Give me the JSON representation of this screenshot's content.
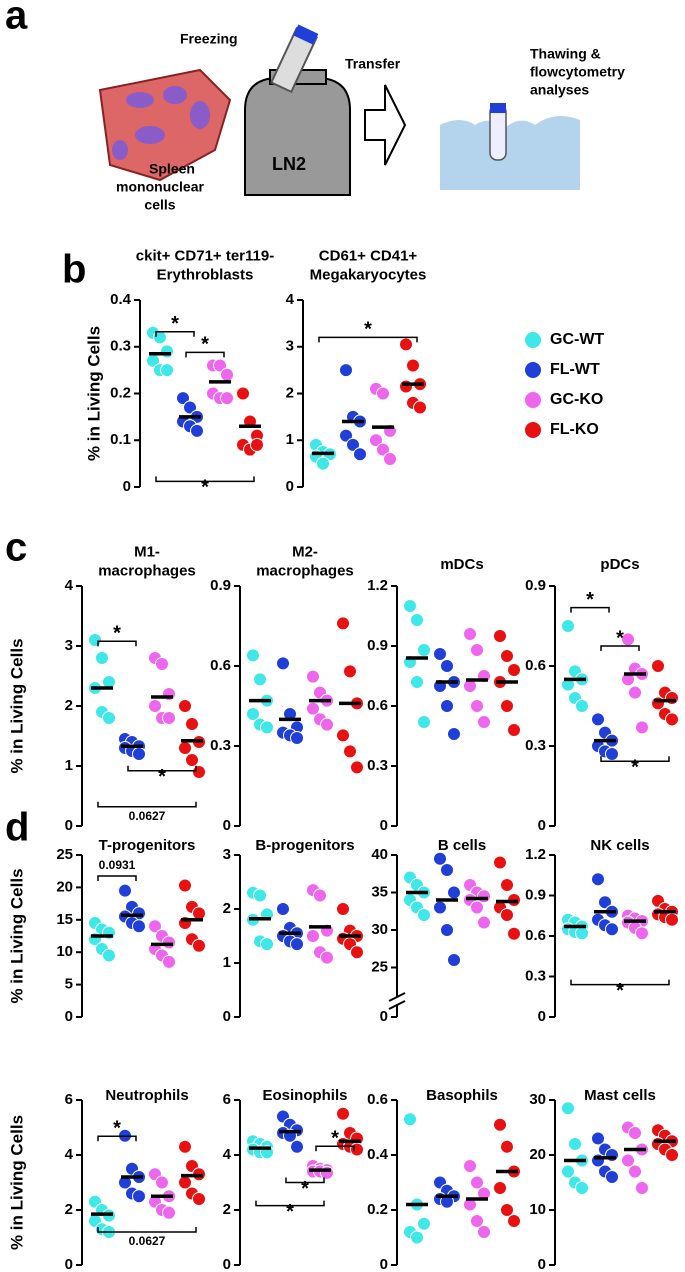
{
  "panel_labels": [
    "a",
    "b",
    "c",
    "d"
  ],
  "schematic": {
    "freezing": "Freezing",
    "ln2": "LN2",
    "transfer": "Transfer",
    "spleen": [
      "Spleen",
      "mononuclear",
      "cells"
    ],
    "thawing": [
      "Thawing &",
      "flowcytometry",
      "analyses"
    ]
  },
  "legend": [
    {
      "name": "GC-WT",
      "color": "#3ee8e8"
    },
    {
      "name": "FL-WT",
      "color": "#1f3fd8"
    },
    {
      "name": "GC-KO",
      "color": "#ee66ee"
    },
    {
      "name": "FL-KO",
      "color": "#e81010"
    }
  ],
  "chart_data": [
    {
      "type": "dot",
      "title": [
        "ckit+ CD71+ ter119-",
        "Erythroblasts"
      ],
      "ylabel": "% in Living Cells",
      "ylim": [
        0,
        0.4
      ],
      "yticks": [
        0,
        0.1,
        0.2,
        0.3,
        0.4
      ],
      "groups": [
        {
          "values": [
            0.33,
            0.32,
            0.29,
            0.27,
            0.25,
            0.25
          ],
          "mean": 0.285
        },
        {
          "values": [
            0.19,
            0.17,
            0.15,
            0.14,
            0.13,
            0.12
          ],
          "mean": 0.15
        },
        {
          "values": [
            0.26,
            0.26,
            0.24,
            0.2,
            0.19,
            0.19
          ],
          "mean": 0.225
        },
        {
          "values": [
            0.2,
            0.14,
            0.11,
            0.09,
            0.08,
            0.09
          ],
          "mean": 0.13
        }
      ],
      "annotations": [
        {
          "text": "*",
          "between": [
            0,
            1
          ]
        },
        {
          "text": "*",
          "between": [
            1,
            2
          ]
        },
        {
          "text": "*",
          "between": [
            0,
            3
          ]
        }
      ]
    },
    {
      "type": "dot",
      "title": [
        "CD61+ CD41+",
        "Megakaryocytes"
      ],
      "ylim": [
        0,
        4
      ],
      "yticks": [
        0,
        1,
        2,
        3,
        4
      ],
      "groups": [
        {
          "values": [
            0.9,
            0.75,
            0.7,
            0.65,
            0.5
          ],
          "mean": 0.72
        },
        {
          "values": [
            2.5,
            1.5,
            1.4,
            1.1,
            0.9,
            0.7
          ],
          "mean": 1.4
        },
        {
          "values": [
            2.1,
            2.0,
            1.2,
            1.0,
            0.8,
            0.6
          ],
          "mean": 1.28
        },
        {
          "values": [
            3.05,
            2.6,
            2.2,
            2.15,
            1.8,
            1.7
          ],
          "mean": 2.2
        }
      ],
      "annotations": [
        {
          "text": "*",
          "between": [
            0,
            3
          ]
        }
      ]
    },
    {
      "type": "dot",
      "title": [
        "M1-",
        "macrophages"
      ],
      "ylabel": "% in Living Cells",
      "ylim": [
        0,
        4
      ],
      "yticks": [
        0,
        1,
        2,
        3,
        4
      ],
      "groups": [
        {
          "values": [
            3.1,
            2.8,
            2.4,
            2.3,
            1.9,
            1.8
          ],
          "mean": 2.3
        },
        {
          "values": [
            1.45,
            1.4,
            1.33,
            1.3,
            1.25,
            1.2
          ],
          "mean": 1.33
        },
        {
          "values": [
            2.8,
            2.7,
            2.2,
            2.0,
            1.8,
            1.8
          ],
          "mean": 2.15
        },
        {
          "values": [
            2.0,
            1.7,
            1.4,
            1.3,
            1.1,
            0.9
          ],
          "mean": 1.42
        }
      ],
      "annotations": [
        {
          "text": "*",
          "between": [
            0,
            1
          ]
        },
        {
          "text": "*",
          "between": [
            1,
            3
          ]
        },
        {
          "text": "0.0627",
          "between": [
            0,
            3
          ]
        }
      ]
    },
    {
      "type": "dot",
      "title": [
        "M2-",
        "macrophages"
      ],
      "ylim": [
        0,
        0.9
      ],
      "yticks": [
        0,
        0.3,
        0.6,
        0.9
      ],
      "groups": [
        {
          "values": [
            0.64,
            0.55,
            0.47,
            0.42,
            0.38,
            0.37
          ],
          "mean": 0.47
        },
        {
          "values": [
            0.61,
            0.42,
            0.37,
            0.35,
            0.34,
            0.33
          ],
          "mean": 0.4
        },
        {
          "values": [
            0.56,
            0.5,
            0.47,
            0.44,
            0.4,
            0.38
          ],
          "mean": 0.47
        },
        {
          "values": [
            0.76,
            0.58,
            0.46,
            0.34,
            0.28,
            0.22
          ],
          "mean": 0.46
        }
      ],
      "annotations": []
    },
    {
      "type": "dot",
      "title": [
        "mDCs"
      ],
      "ylim": [
        0,
        1.2
      ],
      "yticks": [
        0,
        0.3,
        0.6,
        0.9,
        1.2
      ],
      "groups": [
        {
          "values": [
            1.1,
            1.03,
            0.88,
            0.82,
            0.72,
            0.52
          ],
          "mean": 0.84
        },
        {
          "values": [
            0.86,
            0.8,
            0.72,
            0.7,
            0.6,
            0.46
          ],
          "mean": 0.72
        },
        {
          "values": [
            0.96,
            0.88,
            0.75,
            0.7,
            0.6,
            0.52
          ],
          "mean": 0.73
        },
        {
          "values": [
            0.95,
            0.85,
            0.78,
            0.72,
            0.6,
            0.48
          ],
          "mean": 0.72
        }
      ],
      "annotations": []
    },
    {
      "type": "dot",
      "title": [
        "pDCs"
      ],
      "ylim": [
        0,
        0.9
      ],
      "yticks": [
        0,
        0.3,
        0.6,
        0.9
      ],
      "groups": [
        {
          "values": [
            0.75,
            0.58,
            0.55,
            0.53,
            0.48,
            0.45
          ],
          "mean": 0.55
        },
        {
          "values": [
            0.4,
            0.35,
            0.32,
            0.3,
            0.28,
            0.27
          ],
          "mean": 0.32
        },
        {
          "values": [
            0.7,
            0.59,
            0.57,
            0.55,
            0.5,
            0.37
          ],
          "mean": 0.57
        },
        {
          "values": [
            0.6,
            0.5,
            0.48,
            0.46,
            0.42,
            0.4
          ],
          "mean": 0.47
        }
      ],
      "annotations": [
        {
          "text": "*",
          "between": [
            0,
            1
          ]
        },
        {
          "text": "*",
          "between": [
            1,
            2
          ]
        },
        {
          "text": "*",
          "between": [
            1,
            3
          ]
        }
      ]
    },
    {
      "type": "dot",
      "title": [
        "T-progenitors"
      ],
      "ylabel": "% in Living Cells",
      "ylim": [
        0,
        25
      ],
      "yticks": [
        0,
        5,
        10,
        15,
        20,
        25
      ],
      "groups": [
        {
          "values": [
            14.5,
            13.5,
            13,
            12,
            10.5,
            9.5
          ],
          "mean": 12.5
        },
        {
          "values": [
            19.5,
            17,
            16,
            15.5,
            14.5,
            14
          ],
          "mean": 15.7
        },
        {
          "values": [
            14,
            12.5,
            11.5,
            10.5,
            9.5,
            8.5
          ],
          "mean": 11.2
        },
        {
          "values": [
            20.3,
            17,
            16,
            14.5,
            12,
            11
          ],
          "mean": 15
        }
      ],
      "annotations": [
        {
          "text": "0.0931",
          "between": [
            0,
            1
          ]
        }
      ]
    },
    {
      "type": "dot",
      "title": [
        "B-progenitors"
      ],
      "ylim": [
        0,
        3
      ],
      "yticks": [
        0,
        1,
        2,
        3
      ],
      "groups": [
        {
          "values": [
            2.3,
            2.25,
            1.9,
            1.8,
            1.4,
            1.35
          ],
          "mean": 1.82
        },
        {
          "values": [
            2.0,
            1.65,
            1.55,
            1.5,
            1.4,
            1.35
          ],
          "mean": 1.55
        },
        {
          "values": [
            2.35,
            2.25,
            1.6,
            1.5,
            1.2,
            1.1
          ],
          "mean": 1.67
        },
        {
          "values": [
            2.0,
            1.6,
            1.5,
            1.45,
            1.35,
            1.2
          ],
          "mean": 1.5
        }
      ],
      "annotations": []
    },
    {
      "type": "dot",
      "title": [
        "B cells"
      ],
      "ylim": [
        22,
        40
      ],
      "yticks": [
        25,
        30,
        35,
        40
      ],
      "break_tick": 0,
      "groups": [
        {
          "values": [
            37,
            36,
            35,
            34,
            33,
            32
          ],
          "mean": 35
        },
        {
          "values": [
            39.5,
            38,
            35,
            33,
            30,
            26
          ],
          "mean": 34
        },
        {
          "values": [
            36,
            35,
            34.5,
            34,
            33,
            31
          ],
          "mean": 34.2
        },
        {
          "values": [
            39,
            36,
            34,
            33,
            32,
            29.5
          ],
          "mean": 33.8
        }
      ],
      "annotations": []
    },
    {
      "type": "dot",
      "title": [
        "NK cells"
      ],
      "ylim": [
        0,
        1.2
      ],
      "yticks": [
        0,
        0.3,
        0.6,
        0.9,
        1.2
      ],
      "groups": [
        {
          "values": [
            0.72,
            0.7,
            0.67,
            0.65,
            0.63,
            0.62
          ],
          "mean": 0.67
        },
        {
          "values": [
            1.02,
            0.85,
            0.78,
            0.72,
            0.68,
            0.65
          ],
          "mean": 0.78
        },
        {
          "values": [
            0.75,
            0.73,
            0.71,
            0.7,
            0.66,
            0.62
          ],
          "mean": 0.71
        },
        {
          "values": [
            0.86,
            0.8,
            0.78,
            0.76,
            0.74,
            0.72
          ],
          "mean": 0.78
        }
      ],
      "annotations": [
        {
          "text": "*",
          "between": [
            0,
            3
          ]
        }
      ]
    },
    {
      "type": "dot",
      "title": [
        "Neutrophils"
      ],
      "ylabel": "% in Living Cells",
      "ylim": [
        0,
        6
      ],
      "yticks": [
        0,
        2,
        4,
        6
      ],
      "groups": [
        {
          "values": [
            2.3,
            2.0,
            1.8,
            1.6,
            1.3,
            1.2
          ],
          "mean": 1.85
        },
        {
          "values": [
            4.7,
            3.5,
            3.2,
            3.0,
            2.6,
            2.5
          ],
          "mean": 3.2
        },
        {
          "values": [
            3.3,
            3.0,
            2.5,
            2.3,
            2.0,
            1.9
          ],
          "mean": 2.5
        },
        {
          "values": [
            4.3,
            3.6,
            3.3,
            3.0,
            2.6,
            2.4
          ],
          "mean": 3.25
        }
      ],
      "annotations": [
        {
          "text": "*",
          "between": [
            0,
            1
          ]
        },
        {
          "text": "0.0627",
          "between": [
            0,
            3
          ]
        }
      ]
    },
    {
      "type": "dot",
      "title": [
        "Eosinophils"
      ],
      "ylim": [
        0,
        6
      ],
      "yticks": [
        0,
        2,
        4,
        6
      ],
      "groups": [
        {
          "values": [
            4.5,
            4.4,
            4.3,
            4.2,
            4.1,
            4.1
          ],
          "mean": 4.25
        },
        {
          "values": [
            5.4,
            5.1,
            4.9,
            4.8,
            4.7,
            4.3
          ],
          "mean": 4.85
        },
        {
          "values": [
            3.6,
            3.5,
            3.45,
            3.4,
            3.4,
            3.35
          ],
          "mean": 3.45
        },
        {
          "values": [
            5.5,
            4.8,
            4.6,
            4.4,
            4.3,
            4.2
          ],
          "mean": 4.5
        }
      ],
      "annotations": [
        {
          "text": "*",
          "between": [
            2,
            3
          ]
        },
        {
          "text": "*",
          "between": [
            1,
            2
          ]
        },
        {
          "text": "*",
          "between": [
            0,
            2
          ]
        }
      ]
    },
    {
      "type": "dot",
      "title": [
        "Basophils"
      ],
      "ylim": [
        0,
        0.6
      ],
      "yticks": [
        0,
        0.2,
        0.4,
        0.6
      ],
      "groups": [
        {
          "values": [
            0.53,
            0.22,
            0.15,
            0.12,
            0.1
          ],
          "mean": 0.22
        },
        {
          "values": [
            0.3,
            0.27,
            0.25,
            0.24,
            0.23
          ],
          "mean": 0.25
        },
        {
          "values": [
            0.36,
            0.3,
            0.26,
            0.22,
            0.16,
            0.12
          ],
          "mean": 0.24
        },
        {
          "values": [
            0.51,
            0.43,
            0.34,
            0.28,
            0.2,
            0.16
          ],
          "mean": 0.34
        }
      ],
      "annotations": []
    },
    {
      "type": "dot",
      "title": [
        "Mast cells"
      ],
      "ylim": [
        0,
        30
      ],
      "yticks": [
        0,
        10,
        20,
        30
      ],
      "groups": [
        {
          "values": [
            28.5,
            22,
            19,
            17,
            15,
            14
          ],
          "mean": 19
        },
        {
          "values": [
            23,
            21,
            20,
            19,
            17,
            16
          ],
          "mean": 19.5
        },
        {
          "values": [
            25,
            24,
            21,
            19,
            17,
            14
          ],
          "mean": 21
        },
        {
          "values": [
            24.5,
            23.5,
            22.5,
            22,
            21,
            20
          ],
          "mean": 22.5
        }
      ],
      "annotations": []
    }
  ]
}
